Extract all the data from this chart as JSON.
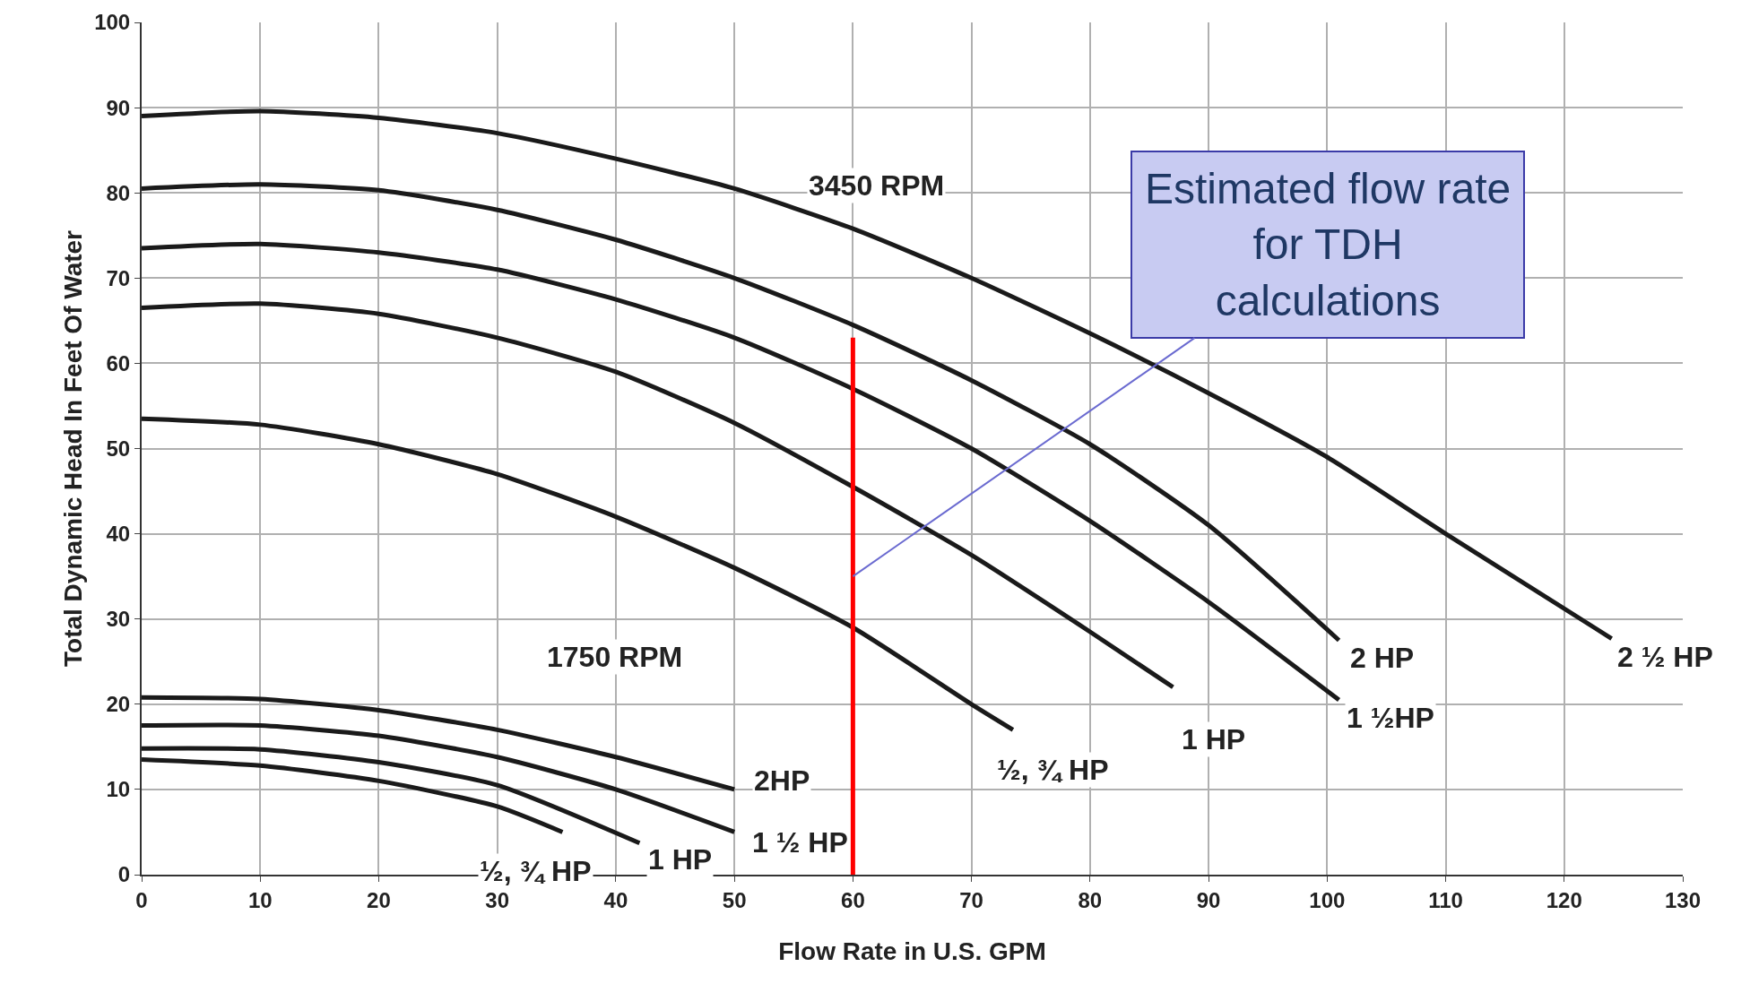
{
  "chart_data": {
    "type": "line",
    "xlabel": "Flow Rate in U.S. GPM",
    "ylabel": "Total Dynamic Head In Feet Of Water",
    "xlim": [
      0,
      130
    ],
    "xticks": [
      0,
      10,
      20,
      30,
      40,
      50,
      60,
      70,
      80,
      90,
      100,
      110,
      120,
      130
    ],
    "ylim": [
      0,
      100
    ],
    "yticks": [
      0,
      10,
      20,
      30,
      40,
      50,
      60,
      70,
      80,
      90,
      100
    ],
    "grid": true,
    "legend": false,
    "marker": "none",
    "line_style": "solid",
    "series": [
      {
        "name": "2 ½ HP",
        "color": "#1a1a1a",
        "x": [
          0,
          10,
          20,
          30,
          40,
          50,
          60,
          70,
          80,
          90,
          100,
          110,
          124
        ],
        "values": [
          89,
          89.6,
          88.8,
          87,
          84,
          80.5,
          75.8,
          70,
          63.5,
          56.5,
          49,
          40,
          27.7
        ]
      },
      {
        "name": "2 HP",
        "color": "#1a1a1a",
        "x": [
          0,
          10,
          20,
          30,
          40,
          50,
          60,
          70,
          80,
          90,
          101
        ],
        "values": [
          80.5,
          81,
          80.3,
          78,
          74.5,
          70,
          64.5,
          58,
          50.5,
          41,
          27.5
        ]
      },
      {
        "name": "1 ½HP",
        "color": "#1a1a1a",
        "x": [
          0,
          10,
          20,
          30,
          40,
          50,
          60,
          70,
          80,
          90,
          101
        ],
        "values": [
          73.5,
          74,
          73,
          71,
          67.5,
          63,
          57,
          50,
          41.5,
          32,
          20.5
        ]
      },
      {
        "name": "1 HP",
        "color": "#1a1a1a",
        "x": [
          0,
          10,
          20,
          30,
          40,
          50,
          60,
          70,
          80,
          87
        ],
        "values": [
          66.5,
          67,
          65.8,
          63,
          59,
          53,
          45.5,
          37.5,
          28.5,
          22
        ]
      },
      {
        "name": "½, ¾ HP",
        "color": "#1a1a1a",
        "x": [
          0,
          10,
          20,
          30,
          40,
          50,
          60,
          70,
          73.5
        ],
        "values": [
          53.5,
          52.8,
          50.5,
          47,
          42,
          36,
          29,
          20,
          17
        ]
      },
      {
        "name": "2HP",
        "color": "#1a1a1a",
        "x": [
          0,
          10,
          20,
          30,
          40,
          50
        ],
        "values": [
          20.8,
          20.6,
          19.3,
          17,
          13.8,
          10
        ]
      },
      {
        "name": "1 ½ HP",
        "color": "#1a1a1a",
        "x": [
          0,
          10,
          20,
          30,
          40,
          50
        ],
        "values": [
          17.5,
          17.5,
          16.3,
          13.8,
          10,
          5
        ]
      },
      {
        "name": "1 HP",
        "color": "#1a1a1a",
        "x": [
          0,
          10,
          20,
          30,
          42
        ],
        "values": [
          14.8,
          14.7,
          13.2,
          10.5,
          3.7
        ]
      },
      {
        "name": "½, ¾ HP",
        "color": "#1a1a1a",
        "x": [
          0,
          10,
          20,
          30,
          35.5
        ],
        "values": [
          13.5,
          12.8,
          11,
          8,
          5
        ]
      },
      {
        "color": "#ff0000",
        "x": [
          60,
          60
        ],
        "values": [
          0,
          63
        ]
      }
    ],
    "annotations": [
      "3450 RPM",
      "1750 RPM",
      {
        "text": "Estimated flow rate for TDH calculations",
        "x": 60,
        "y": 35
      }
    ]
  }
}
